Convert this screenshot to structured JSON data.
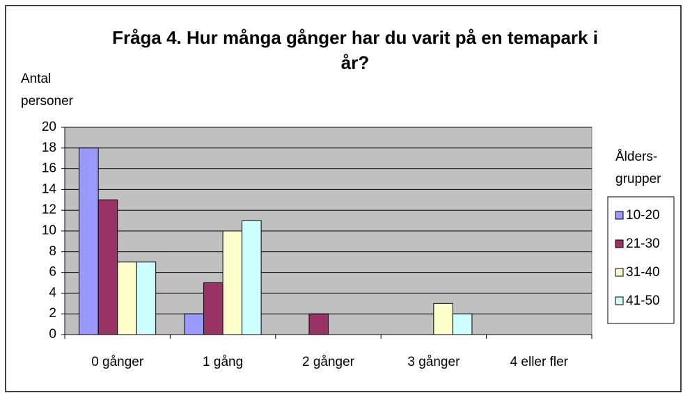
{
  "chart_data": {
    "type": "bar",
    "title": "Fråga 4. Hur många gånger har du varit på en temapark i år?",
    "y_label": "Antal personer",
    "legend_title": "Ålders-grupper",
    "categories": [
      "0 gånger",
      "1 gång",
      "2 gånger",
      "3 gånger",
      "4 eller fler"
    ],
    "series": [
      {
        "name": "10-20",
        "color": "#9999ff",
        "values": [
          18,
          2,
          0,
          0,
          0
        ]
      },
      {
        "name": "21-30",
        "color": "#993366",
        "values": [
          13,
          5,
          2,
          0,
          0
        ]
      },
      {
        "name": "31-40",
        "color": "#ffffcc",
        "values": [
          7,
          10,
          0,
          3,
          0
        ]
      },
      {
        "name": "41-50",
        "color": "#ccffff",
        "values": [
          7,
          11,
          0,
          2,
          0
        ]
      }
    ],
    "ylim": [
      0,
      20
    ],
    "yticks": [
      0,
      2,
      4,
      6,
      8,
      10,
      12,
      14,
      16,
      18,
      20
    ],
    "grid": true,
    "legend": "right"
  }
}
